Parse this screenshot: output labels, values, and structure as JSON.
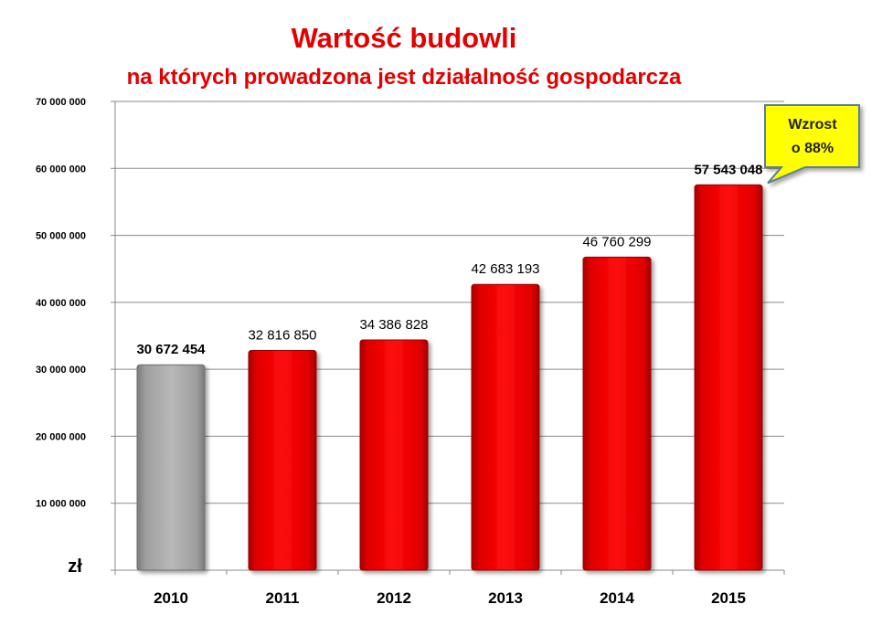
{
  "chart_data": {
    "type": "bar",
    "title": "Wartość budowli",
    "subtitle": "na których prowadzona jest działalność gospodarcza",
    "categories": [
      "2010",
      "2011",
      "2012",
      "2013",
      "2014",
      "2015"
    ],
    "values": [
      30672454,
      32816850,
      34386828,
      42683193,
      46760299,
      57543048
    ],
    "data_labels": [
      "30 672 454",
      "32 816 850",
      "34 386 828",
      "42 683 193",
      "46 760 299",
      "57 543 048"
    ],
    "ylabel": "zł",
    "ylim": [
      0,
      70000000
    ],
    "yticks": [
      {
        "value": 0,
        "label": ""
      },
      {
        "value": 10000000,
        "label": "10 000 000"
      },
      {
        "value": 20000000,
        "label": "20 000 000"
      },
      {
        "value": 30000000,
        "label": "30 000 000"
      },
      {
        "value": 40000000,
        "label": "40 000 000"
      },
      {
        "value": 50000000,
        "label": "50 000 000"
      },
      {
        "value": 60000000,
        "label": "60 000 000"
      },
      {
        "value": 70000000,
        "label": "70 000 000"
      }
    ],
    "grid": true,
    "bar_colors": [
      "#a9a9a9",
      "#ee0000",
      "#ee0000",
      "#ee0000",
      "#ee0000",
      "#ee0000"
    ],
    "bold_labels": [
      true,
      false,
      false,
      false,
      false,
      true
    ],
    "annotation": {
      "lines": [
        "Wzrost",
        "o 88%"
      ],
      "target_category": "2015",
      "fill": "#ffff00",
      "border": "#5a7f96"
    }
  }
}
